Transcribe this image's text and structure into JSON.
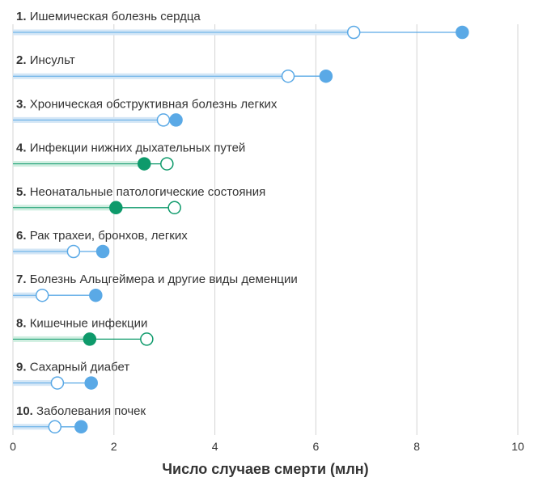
{
  "chart_data": {
    "type": "dumbbell",
    "xlabel": "Число случаев смерти (млн)",
    "xlim": [
      0,
      10
    ],
    "x_ticks": [
      "0",
      "2",
      "4",
      "6",
      "8",
      "10"
    ],
    "colors": {
      "increase": "#5aa9e6",
      "decrease": "#0e9a6b",
      "band_increase": "#d3e6f6",
      "band_decrease": "#cfeee0",
      "grid": "#d4d4d4",
      "text": "#333333"
    },
    "rows": [
      {
        "rank": "1.",
        "label": "Ишемическая болезнь сердца",
        "start": 6.75,
        "end": 8.9,
        "trend": "increase"
      },
      {
        "rank": "2.",
        "label": "Инсульт",
        "start": 5.45,
        "end": 6.2,
        "trend": "increase"
      },
      {
        "rank": "3.",
        "label": "Хроническая обструктивная болезнь легких",
        "start": 2.98,
        "end": 3.23,
        "trend": "increase"
      },
      {
        "rank": "4.",
        "label": "Инфекции нижних дыхательных путей",
        "start": 3.05,
        "end": 2.6,
        "trend": "decrease"
      },
      {
        "rank": "5.",
        "label": "Неонатальные патологические состояния",
        "start": 3.2,
        "end": 2.04,
        "trend": "decrease"
      },
      {
        "rank": "6.",
        "label": "Рак трахеи, бронхов, легких",
        "start": 1.2,
        "end": 1.78,
        "trend": "increase"
      },
      {
        "rank": "7.",
        "label": "Болезнь Альцгеймера и другие виды деменции",
        "start": 0.58,
        "end": 1.64,
        "trend": "increase"
      },
      {
        "rank": "8.",
        "label": "Кишечные инфекции",
        "start": 2.65,
        "end": 1.52,
        "trend": "decrease"
      },
      {
        "rank": "9.",
        "label": "Сахарный диабет",
        "start": 0.88,
        "end": 1.55,
        "trend": "increase"
      },
      {
        "rank": "10.",
        "label": "Заболевания почек",
        "start": 0.83,
        "end": 1.35,
        "trend": "increase"
      }
    ]
  }
}
